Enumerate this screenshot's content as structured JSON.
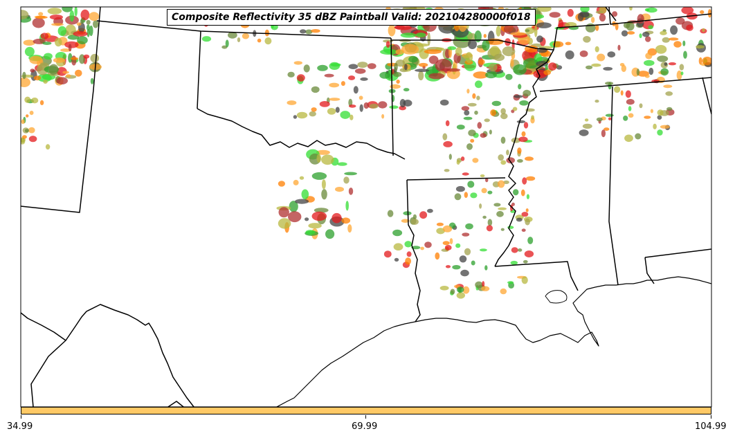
{
  "title": "Composite Reflectivity 35 dBZ Paintball Valid: 202104280000f018",
  "colors": {
    "colorbar_fill": "#ffc966",
    "boundary": "#000000",
    "members": [
      "#e31a1c",
      "#ff7f00",
      "#ffa733",
      "#2ca02c",
      "#33dd33",
      "#a3a34d",
      "#b8b840",
      "#444444",
      "#b03030",
      "#6a8a3a"
    ]
  },
  "colorbar": {
    "ticks": [
      "34.99",
      "69.99",
      "104.99"
    ],
    "values": [
      34.99,
      69.99,
      104.99
    ]
  }
}
